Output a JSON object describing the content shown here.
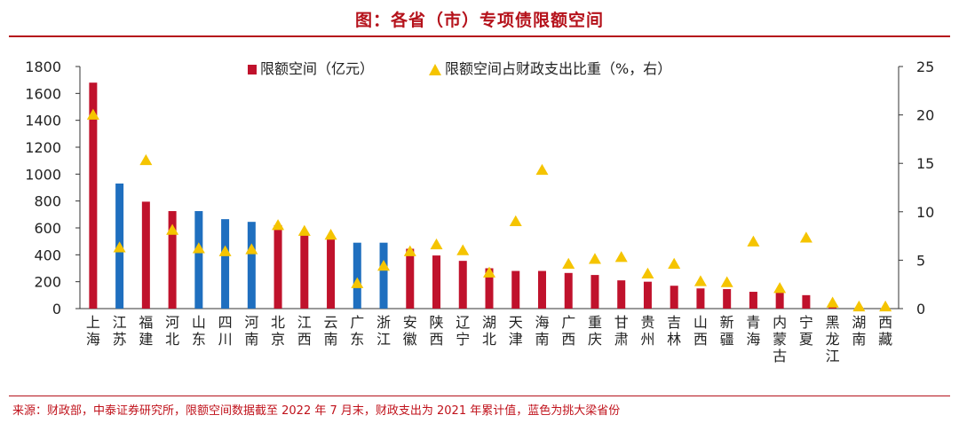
{
  "title": "图：各省（市）专项债限额空间",
  "source_note": "来源：财政部，中泰证券研究所，限额空间数据截至 2022 年 7 月末，财政支出为 2021 年累计值，蓝色为挑大梁省份",
  "colors": {
    "red_bar": "#c0122c",
    "blue_bar": "#1f6fbf",
    "marker": "#f5c400",
    "accent": "#b5121b"
  },
  "chart_data": {
    "type": "bar",
    "categories": [
      "上海",
      "江苏",
      "福建",
      "河北",
      "山东",
      "四川",
      "河南",
      "北京",
      "江西",
      "云南",
      "广东",
      "浙江",
      "安徽",
      "陕西",
      "辽宁",
      "湖北",
      "天津",
      "海南",
      "广西",
      "重庆",
      "甘肃",
      "贵州",
      "吉林",
      "山西",
      "新疆",
      "青海",
      "内蒙古",
      "宁夏",
      "黑龙江",
      "湖南",
      "西藏"
    ],
    "series": [
      {
        "name": "限额空间（亿元）",
        "axis": "left",
        "values": [
          1680,
          930,
          795,
          725,
          725,
          665,
          645,
          620,
          550,
          515,
          490,
          490,
          445,
          395,
          355,
          300,
          280,
          280,
          265,
          250,
          210,
          200,
          170,
          150,
          145,
          125,
          120,
          100,
          15,
          10,
          5
        ]
      },
      {
        "name": "限额空间占财政支出比重（%，右）",
        "axis": "right",
        "type": "scatter",
        "values": [
          20.0,
          6.3,
          15.3,
          8.1,
          6.2,
          5.9,
          6.1,
          8.6,
          8.0,
          7.6,
          2.6,
          4.4,
          5.9,
          6.6,
          6.0,
          3.7,
          9.0,
          14.3,
          4.6,
          5.1,
          5.3,
          3.6,
          4.6,
          2.8,
          2.7,
          6.9,
          2.1,
          7.3,
          0.6,
          0.2,
          0.2
        ]
      }
    ],
    "highlight": [
      1,
      4,
      5,
      6,
      10,
      11
    ],
    "ylim_left": [
      0,
      1800
    ],
    "yticks_left": [
      0,
      200,
      400,
      600,
      800,
      1000,
      1200,
      1400,
      1600,
      1800
    ],
    "ylim_right": [
      0,
      25
    ],
    "yticks_right": [
      0,
      5,
      10,
      15,
      20,
      25
    ],
    "legend_position": "top-center",
    "grid": false
  }
}
